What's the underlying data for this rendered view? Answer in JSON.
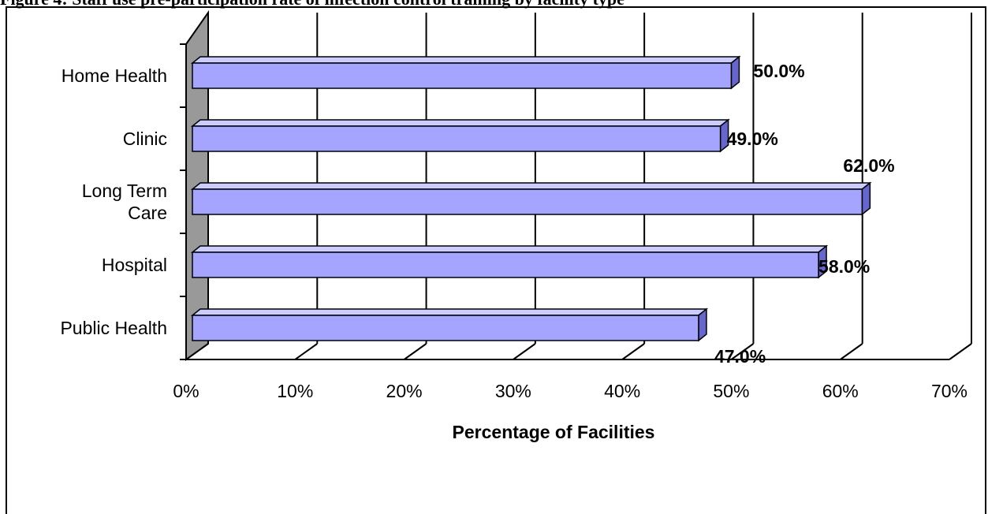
{
  "page": {
    "title_fragment": "Figure 4: Staff use pre-participation rate of infection control training by facility type"
  },
  "chart_data": {
    "type": "bar",
    "orientation": "horizontal",
    "three_d": true,
    "categories": [
      "Home Health",
      "Clinic",
      "Long Term Care",
      "Hospital",
      "Public Health"
    ],
    "category_label_lines": [
      [
        "Home Health"
      ],
      [
        "Clinic"
      ],
      [
        "Long Term",
        "Care"
      ],
      [
        "Hospital"
      ],
      [
        "Public Health"
      ]
    ],
    "values": [
      50.0,
      49.0,
      62.0,
      58.0,
      47.0
    ],
    "value_labels": [
      "50.0%",
      "49.0%",
      "62.0%",
      "58.0%",
      "47.0%"
    ],
    "xlabel": "Percentage of Facilities",
    "ylabel": "",
    "xlim": [
      0,
      70
    ],
    "x_ticks": [
      "0%",
      "10%",
      "20%",
      "30%",
      "40%",
      "50%",
      "60%",
      "70%"
    ],
    "grid": true,
    "legend": "none",
    "colors": {
      "bar_fill": "#9999ff",
      "bar_front": "#a5a5ff",
      "bar_top": "#ccccff",
      "bar_side": "#6666cc",
      "back_wall_side": "#999999",
      "line": "#000000"
    }
  }
}
